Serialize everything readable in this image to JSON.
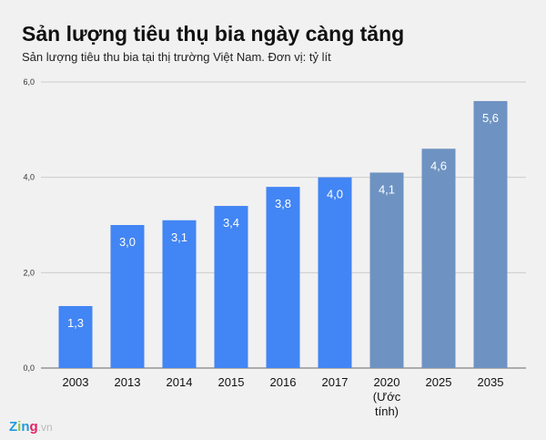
{
  "chart_data": {
    "type": "bar",
    "title": "Sản lượng tiêu thụ bia ngày càng tăng",
    "subtitle": "Sản lượng tiêu thu bia tại thị trường Việt Nam. Đơn vị: tỷ lít",
    "categories": [
      "2003",
      "2013",
      "2014",
      "2015",
      "2016",
      "2017",
      "2020 (Ước tính)",
      "2025",
      "2035"
    ],
    "values": [
      1.3,
      3.0,
      3.1,
      3.4,
      3.8,
      4.0,
      4.1,
      4.6,
      5.6
    ],
    "data_labels": [
      "1,3",
      "3,0",
      "3,1",
      "3,4",
      "3,8",
      "4,0",
      "4,1",
      "4,6",
      "5,6"
    ],
    "forecast": [
      false,
      false,
      false,
      false,
      false,
      false,
      true,
      true,
      true
    ],
    "ylim": [
      0,
      6
    ],
    "yticks": [
      0,
      2,
      4,
      6
    ],
    "ytick_labels": [
      "0,0",
      "2,0",
      "4,0",
      "6,0"
    ],
    "grid": true,
    "colors": {
      "actual": "#4285f4",
      "forecast": "#6e93c2",
      "grid": "#cccccc",
      "background": "#f1f1f1"
    }
  },
  "logo": {
    "text": "Zing.vn"
  }
}
